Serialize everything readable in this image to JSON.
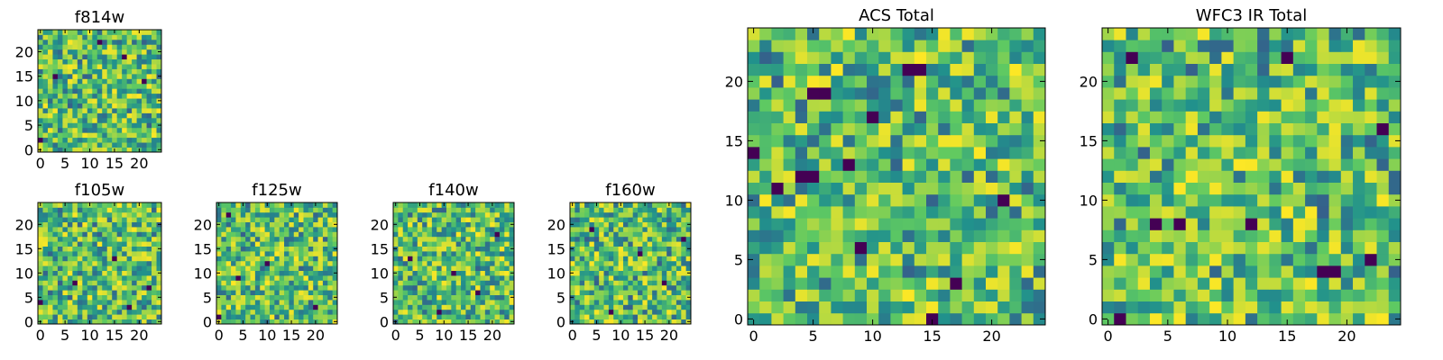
{
  "figure": {
    "description_free": true,
    "seed": 814
  },
  "colors": {
    "viridis": [
      "#440154",
      "#3b528b",
      "#21918c",
      "#5ec962",
      "#fde725"
    ],
    "axis": "#000000",
    "background": "#ffffff"
  },
  "chart_data": [
    {
      "id": "f814w",
      "type": "heatmap",
      "title": "f814w",
      "grid_size": [
        25,
        25
      ],
      "xlim": [
        -0.5,
        24.5
      ],
      "ylim": [
        -0.5,
        24.5
      ],
      "xticks": [
        0,
        5,
        10,
        15,
        20
      ],
      "yticks": [
        0,
        5,
        10,
        15,
        20
      ],
      "xtick_labels": [
        "0",
        "5",
        "10",
        "15",
        "20"
      ],
      "ytick_labels": [
        "0",
        "5",
        "10",
        "15",
        "20"
      ],
      "colormap": "viridis",
      "value_range": [
        0,
        1
      ],
      "seed": 11,
      "hot_cells": [
        [
          3,
          15
        ],
        [
          0,
          2
        ],
        [
          21,
          14
        ],
        [
          12,
          22
        ],
        [
          17,
          19
        ]
      ]
    },
    {
      "id": "f105w",
      "type": "heatmap",
      "title": "f105w",
      "grid_size": [
        25,
        25
      ],
      "xlim": [
        -0.5,
        24.5
      ],
      "ylim": [
        -0.5,
        24.5
      ],
      "xticks": [
        0,
        5,
        10,
        15,
        20
      ],
      "yticks": [
        0,
        5,
        10,
        15,
        20
      ],
      "xtick_labels": [
        "0",
        "5",
        "10",
        "15",
        "20"
      ],
      "ytick_labels": [
        "0",
        "5",
        "10",
        "15",
        "20"
      ],
      "colormap": "viridis",
      "value_range": [
        0,
        1
      ],
      "seed": 23,
      "hot_cells": [
        [
          22,
          7
        ],
        [
          7,
          8
        ],
        [
          0,
          4
        ],
        [
          15,
          13
        ],
        [
          18,
          3
        ]
      ]
    },
    {
      "id": "f125w",
      "type": "heatmap",
      "title": "f125w",
      "grid_size": [
        25,
        25
      ],
      "xlim": [
        -0.5,
        24.5
      ],
      "ylim": [
        -0.5,
        24.5
      ],
      "xticks": [
        0,
        5,
        10,
        15,
        20
      ],
      "yticks": [
        0,
        5,
        10,
        15,
        20
      ],
      "xtick_labels": [
        "0",
        "5",
        "10",
        "15",
        "20"
      ],
      "ytick_labels": [
        "0",
        "5",
        "10",
        "15",
        "20"
      ],
      "colormap": "viridis",
      "value_range": [
        0,
        1
      ],
      "seed": 37,
      "hot_cells": [
        [
          4,
          9
        ],
        [
          0,
          1
        ],
        [
          20,
          3
        ],
        [
          10,
          12
        ],
        [
          2,
          22
        ]
      ]
    },
    {
      "id": "f140w",
      "type": "heatmap",
      "title": "f140w",
      "grid_size": [
        25,
        25
      ],
      "xlim": [
        -0.5,
        24.5
      ],
      "ylim": [
        -0.5,
        24.5
      ],
      "xticks": [
        0,
        5,
        10,
        15,
        20
      ],
      "yticks": [
        0,
        5,
        10,
        15,
        20
      ],
      "xtick_labels": [
        "0",
        "5",
        "10",
        "15",
        "20"
      ],
      "ytick_labels": [
        "0",
        "5",
        "10",
        "15",
        "20"
      ],
      "colormap": "viridis",
      "value_range": [
        0,
        1
      ],
      "seed": 41,
      "hot_cells": [
        [
          3,
          13
        ],
        [
          17,
          6
        ],
        [
          9,
          2
        ],
        [
          21,
          18
        ],
        [
          12,
          10
        ]
      ]
    },
    {
      "id": "f160w",
      "type": "heatmap",
      "title": "f160w",
      "grid_size": [
        25,
        25
      ],
      "xlim": [
        -0.5,
        24.5
      ],
      "ylim": [
        -0.5,
        24.5
      ],
      "xticks": [
        0,
        5,
        10,
        15,
        20
      ],
      "yticks": [
        0,
        5,
        10,
        15,
        20
      ],
      "xtick_labels": [
        "0",
        "5",
        "10",
        "15",
        "20"
      ],
      "ytick_labels": [
        "0",
        "5",
        "10",
        "15",
        "20"
      ],
      "colormap": "viridis",
      "value_range": [
        0,
        1
      ],
      "seed": 59,
      "hot_cells": [
        [
          14,
          14
        ],
        [
          4,
          19
        ],
        [
          19,
          8
        ],
        [
          8,
          2
        ],
        [
          23,
          17
        ]
      ]
    },
    {
      "id": "acs_total",
      "type": "heatmap",
      "title": "ACS Total",
      "grid_size": [
        25,
        25
      ],
      "xlim": [
        -0.5,
        24.5
      ],
      "ylim": [
        -0.5,
        24.5
      ],
      "xticks": [
        0,
        5,
        10,
        15,
        20
      ],
      "yticks": [
        0,
        5,
        10,
        15,
        20
      ],
      "xtick_labels": [
        "0",
        "5",
        "10",
        "15",
        "20"
      ],
      "ytick_labels": [
        "0",
        "5",
        "10",
        "15",
        "20"
      ],
      "colormap": "viridis",
      "value_range": [
        0,
        1
      ],
      "seed": 67,
      "hot_cells": [
        [
          13,
          21
        ],
        [
          14,
          21
        ],
        [
          6,
          19
        ],
        [
          5,
          19
        ],
        [
          10,
          17
        ],
        [
          0,
          14
        ],
        [
          4,
          12
        ],
        [
          5,
          12
        ],
        [
          8,
          13
        ],
        [
          2,
          11
        ],
        [
          21,
          10
        ],
        [
          9,
          6
        ],
        [
          15,
          0
        ],
        [
          17,
          3
        ]
      ]
    },
    {
      "id": "wfc3_ir_total",
      "type": "heatmap",
      "title": "WFC3 IR Total",
      "grid_size": [
        25,
        25
      ],
      "xlim": [
        -0.5,
        24.5
      ],
      "ylim": [
        -0.5,
        24.5
      ],
      "xticks": [
        0,
        5,
        10,
        15,
        20
      ],
      "yticks": [
        0,
        5,
        10,
        15,
        20
      ],
      "xtick_labels": [
        "0",
        "5",
        "10",
        "15",
        "20"
      ],
      "ytick_labels": [
        "0",
        "5",
        "10",
        "15",
        "20"
      ],
      "colormap": "viridis",
      "value_range": [
        0,
        1
      ],
      "seed": 83,
      "hot_cells": [
        [
          2,
          22
        ],
        [
          15,
          22
        ],
        [
          4,
          8
        ],
        [
          6,
          8
        ],
        [
          12,
          8
        ],
        [
          18,
          4
        ],
        [
          19,
          4
        ],
        [
          22,
          5
        ],
        [
          23,
          16
        ],
        [
          1,
          0
        ]
      ]
    }
  ]
}
